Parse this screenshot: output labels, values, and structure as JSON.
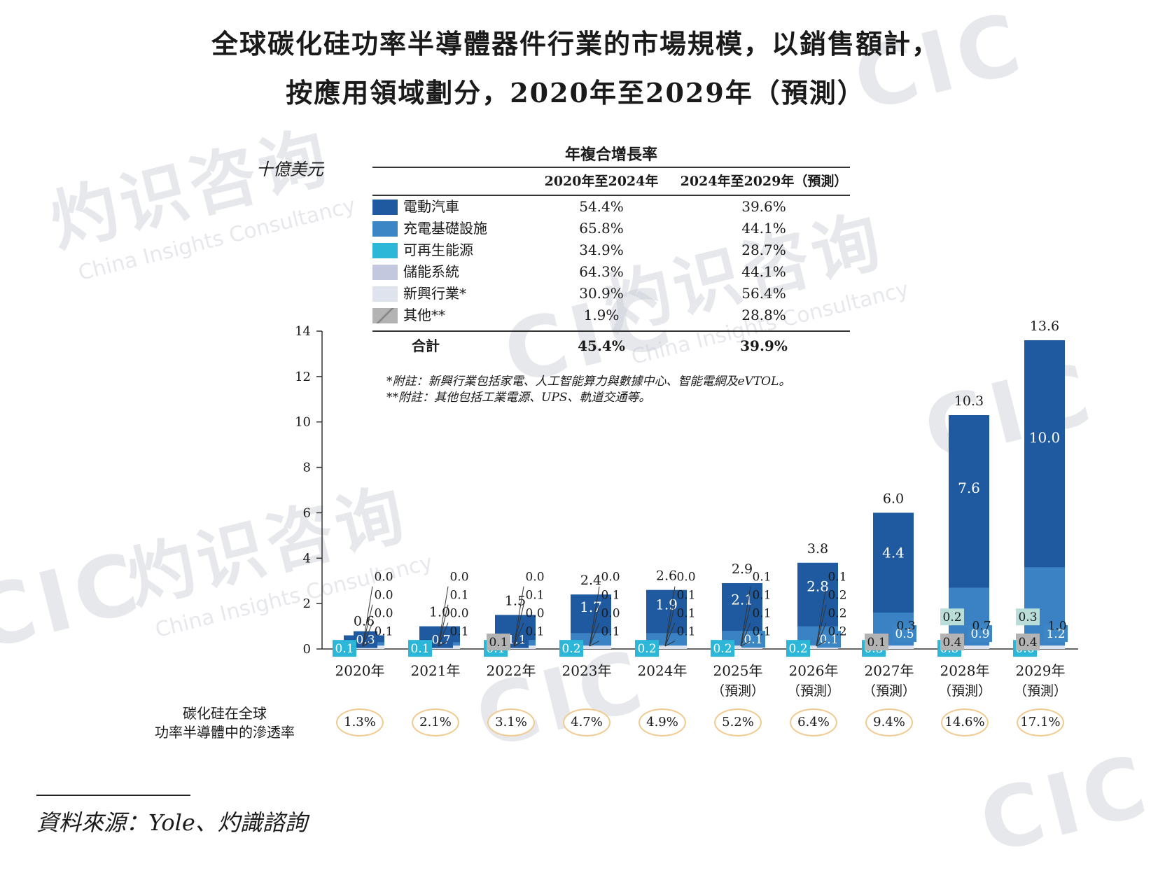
{
  "title": {
    "line1": "全球碳化硅功率半導體器件行業的市場規模，以銷售額計，",
    "line2": "按應用領域劃分，2020年至2029年（預測）"
  },
  "unit_label": "十億美元",
  "watermark": {
    "cn": "灼识咨询",
    "en": "China Insights Consultancy",
    "logo": "CIC"
  },
  "cagr_table": {
    "header": "年複合增長率",
    "col1": "2020年至2024年",
    "col2": "2024年至2029年（預測）",
    "rows": [
      {
        "name": "電動汽車",
        "a": "54.4%",
        "b": "39.6%",
        "color": "#1f5aa0"
      },
      {
        "name": "充電基礎設施",
        "a": "65.8%",
        "b": "44.1%",
        "color": "#3d86c6"
      },
      {
        "name": "可再生能源",
        "a": "34.9%",
        "b": "28.7%",
        "color": "#2cb6d8"
      },
      {
        "name": "儲能系統",
        "a": "64.3%",
        "b": "44.1%",
        "color": "#c3c8df"
      },
      {
        "name": "新興行業*",
        "a": "30.9%",
        "b": "56.4%",
        "color": "#dfe3ee"
      },
      {
        "name": "其他**",
        "a": "1.9%",
        "b": "28.8%",
        "color": "#b3b3b3"
      }
    ],
    "total": {
      "name": "合計",
      "a": "45.4%",
      "b": "39.9%"
    }
  },
  "notes": [
    "*附註：新興行業包括家電、人工智能算力與數據中心、智能電網及eVTOL。",
    "**附註：其他包括工業電源、UPS、軌道交通等。"
  ],
  "chart_data": {
    "type": "bar",
    "stacked": false,
    "ylim": [
      0,
      14
    ],
    "yticks": [
      0,
      2,
      4,
      6,
      8,
      10,
      12,
      14
    ],
    "categories": [
      {
        "year": "2020年",
        "sub": ""
      },
      {
        "year": "2021年",
        "sub": ""
      },
      {
        "year": "2022年",
        "sub": ""
      },
      {
        "year": "2023年",
        "sub": ""
      },
      {
        "year": "2024年",
        "sub": ""
      },
      {
        "year": "2025年",
        "sub": "（預測）"
      },
      {
        "year": "2026年",
        "sub": "（預測）"
      },
      {
        "year": "2027年",
        "sub": "（預測）"
      },
      {
        "year": "2028年",
        "sub": "（預測）"
      },
      {
        "year": "2029年",
        "sub": "（預測）"
      }
    ],
    "totals": [
      "0.6",
      "1.0",
      "1.5",
      "2.4",
      "2.6",
      "2.9",
      "3.8",
      "6.0",
      "10.3",
      "13.6"
    ],
    "total_values": [
      0.6,
      1.0,
      1.5,
      2.4,
      2.6,
      2.9,
      3.8,
      6.0,
      10.3,
      13.6
    ],
    "series": [
      {
        "name": "電動汽車",
        "color": "#1f5aa0",
        "labels": [
          "0.3",
          "0.7",
          "1.1",
          "1.7",
          "1.9",
          "2.1",
          "2.8",
          "4.4",
          "7.6",
          "10.0"
        ]
      },
      {
        "name": "充電基礎設施",
        "color": "#3d86c6",
        "labels": [
          "0.0",
          "0.0",
          "0.0",
          "0.0",
          "0.0",
          "0.1",
          "0.1",
          "0.5",
          "0.9",
          "1.2"
        ]
      },
      {
        "name": "可再生能源",
        "color": "#2cb6d8",
        "labels": [
          "0.1",
          "0.1",
          "0.1",
          "0.2",
          "0.2",
          "0.2",
          "0.2",
          "0.3",
          "0.5",
          "0.6"
        ]
      },
      {
        "name": "儲能系統",
        "color": "#c3c8df",
        "labels": [
          "0.0",
          "0.1",
          "0.1",
          "0.1",
          "0.1",
          "0.1",
          "0.2",
          "0.3",
          "0.2",
          "0.3"
        ]
      },
      {
        "name": "新興行業*",
        "color": "#dfe3ee",
        "labels": [
          "0.0",
          "0.0",
          "0.0",
          "0.0",
          "0.1",
          "0.1",
          "0.2",
          "0.3",
          "0.7",
          "1.0"
        ]
      },
      {
        "name": "其他**",
        "color": "#b3b3b3",
        "labels": [
          "0.1",
          "0.1",
          "0.1",
          "0.1",
          "0.1",
          "0.1",
          "0.2",
          "0.1",
          "0.4",
          "0.4"
        ]
      }
    ]
  },
  "penetration": {
    "label": "碳化硅在全球\n功率半導體中的滲透率",
    "values": [
      "1.3%",
      "2.1%",
      "3.1%",
      "4.7%",
      "4.9%",
      "5.2%",
      "6.4%",
      "9.4%",
      "14.6%",
      "17.1%"
    ]
  },
  "source": "資料來源：Yole、灼識諮詢"
}
